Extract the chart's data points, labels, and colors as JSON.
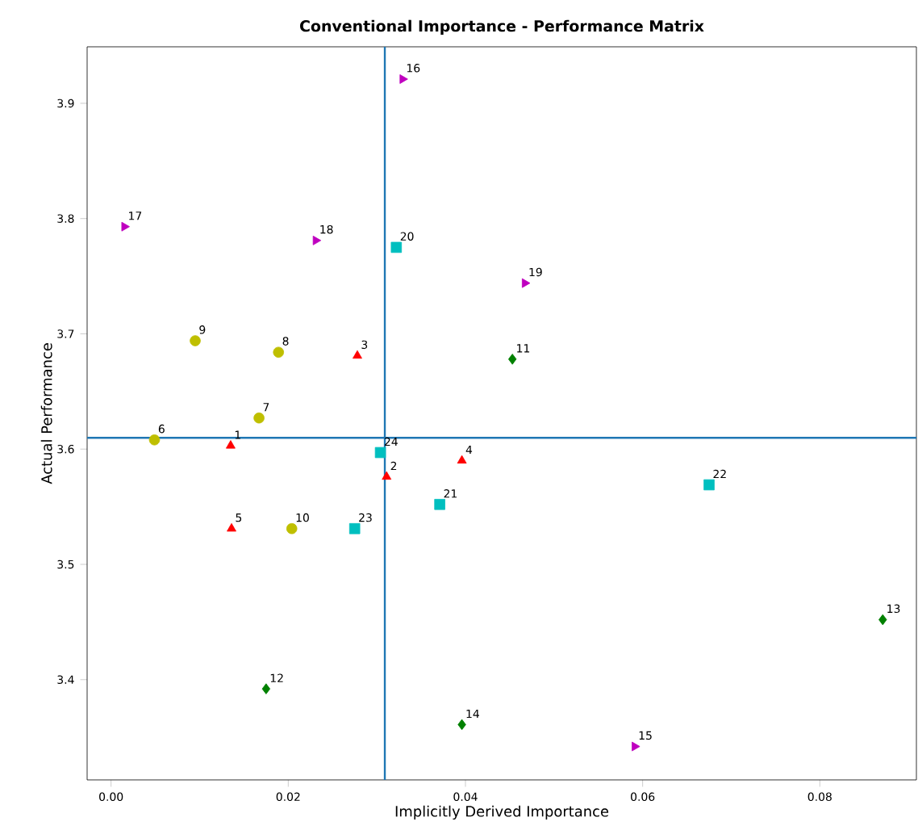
{
  "chart_data": {
    "type": "scatter",
    "title": "Conventional Importance - Performance Matrix",
    "xlabel": "Implicitly Derived Importance",
    "ylabel": "Actual Performance",
    "xlim": [
      -0.0027,
      0.0909
    ],
    "ylim": [
      3.313,
      3.949
    ],
    "xticks": [
      {
        "value": 0,
        "label": "0.00"
      },
      {
        "value": 0.02,
        "label": "0.02"
      },
      {
        "value": 0.04,
        "label": "0.04"
      },
      {
        "value": 0.06,
        "label": "0.06"
      },
      {
        "value": 0.08,
        "label": "0.08"
      }
    ],
    "yticks": [
      3.4,
      3.5,
      3.6,
      3.7,
      3.8,
      3.9
    ],
    "grid": false,
    "ref_lines": [
      {
        "axis": "x",
        "value": 0.0309,
        "color": "#1f77b4"
      },
      {
        "axis": "y",
        "value": 3.6098,
        "color": "#1f77b4"
      }
    ],
    "series": [
      {
        "color": "#ff0000",
        "marker": "triangle",
        "x": [
          0.0135,
          0.0311,
          0.0278,
          0.0396,
          0.0136
        ],
        "values": [
          3.603,
          3.576,
          3.681,
          3.59,
          3.531
        ]
      },
      {
        "color": "#bfbf00",
        "marker": "circle",
        "x": [
          0.0049,
          0.0167,
          0.0189,
          0.0095,
          0.0204
        ],
        "values": [
          3.608,
          3.627,
          3.684,
          3.694,
          3.531
        ]
      },
      {
        "color": "#008000",
        "marker": "diamond",
        "x": [
          0.0453,
          0.0175,
          0.0871,
          0.0396
        ],
        "values": [
          3.678,
          3.392,
          3.452,
          3.361
        ]
      },
      {
        "color": "#bf00bf",
        "marker": "triangle-right",
        "x": [
          0.0591,
          0.0329,
          0.0015,
          0.0231,
          0.0467
        ],
        "values": [
          3.342,
          3.921,
          3.793,
          3.781,
          3.744
        ]
      },
      {
        "color": "#00bfbf",
        "marker": "square",
        "x": [
          0.0322,
          0.0371,
          0.0675,
          0.0275,
          0.0304
        ],
        "values": [
          3.775,
          3.552,
          3.569,
          3.531,
          3.597
        ]
      }
    ],
    "annotations": [
      {
        "text": "1",
        "x": 0.0135,
        "y": 3.603
      },
      {
        "text": "2",
        "x": 0.0311,
        "y": 3.576
      },
      {
        "text": "3",
        "x": 0.0278,
        "y": 3.681
      },
      {
        "text": "4",
        "x": 0.0396,
        "y": 3.59
      },
      {
        "text": "5",
        "x": 0.0136,
        "y": 3.531
      },
      {
        "text": "6",
        "x": 0.0049,
        "y": 3.608
      },
      {
        "text": "7",
        "x": 0.0167,
        "y": 3.627
      },
      {
        "text": "8",
        "x": 0.0189,
        "y": 3.684
      },
      {
        "text": "9",
        "x": 0.0095,
        "y": 3.694
      },
      {
        "text": "10",
        "x": 0.0204,
        "y": 3.531
      },
      {
        "text": "11",
        "x": 0.0453,
        "y": 3.678
      },
      {
        "text": "12",
        "x": 0.0175,
        "y": 3.392
      },
      {
        "text": "13",
        "x": 0.0871,
        "y": 3.452
      },
      {
        "text": "14",
        "x": 0.0396,
        "y": 3.361
      },
      {
        "text": "15",
        "x": 0.0591,
        "y": 3.342
      },
      {
        "text": "16",
        "x": 0.0329,
        "y": 3.921
      },
      {
        "text": "17",
        "x": 0.0015,
        "y": 3.793
      },
      {
        "text": "18",
        "x": 0.0231,
        "y": 3.781
      },
      {
        "text": "19",
        "x": 0.0467,
        "y": 3.744
      },
      {
        "text": "20",
        "x": 0.0322,
        "y": 3.775
      },
      {
        "text": "21",
        "x": 0.0371,
        "y": 3.552
      },
      {
        "text": "22",
        "x": 0.0675,
        "y": 3.569
      },
      {
        "text": "23",
        "x": 0.0275,
        "y": 3.531
      },
      {
        "text": "24",
        "x": 0.0304,
        "y": 3.597
      }
    ]
  }
}
